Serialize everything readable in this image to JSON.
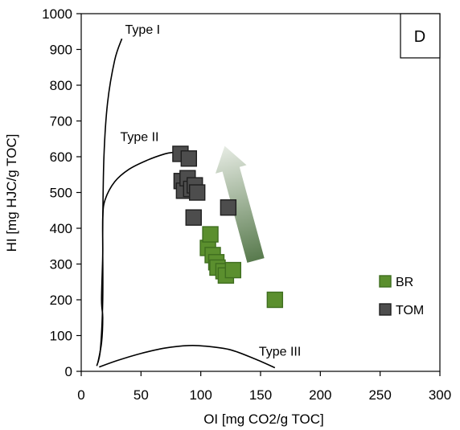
{
  "chart_data": {
    "type": "scatter",
    "title": "",
    "panel_label": "D",
    "xlabel": "OI [mg CO2/g TOC]",
    "ylabel": "HI [mg HJC/g TOC]",
    "xlim": [
      0,
      300
    ],
    "ylim": [
      0,
      1000
    ],
    "x_ticks": [
      0,
      50,
      100,
      150,
      200,
      250,
      300
    ],
    "y_ticks": [
      0,
      100,
      200,
      300,
      400,
      500,
      600,
      700,
      800,
      900,
      1000
    ],
    "grid": false,
    "legend_position": "right",
    "series": [
      {
        "name": "BR",
        "color": "#5b8f2e",
        "edge_color": "#3f6e1f",
        "marker": "square",
        "points": [
          {
            "x": 106,
            "y": 345
          },
          {
            "x": 108,
            "y": 383
          },
          {
            "x": 110,
            "y": 325
          },
          {
            "x": 113,
            "y": 305
          },
          {
            "x": 114,
            "y": 290
          },
          {
            "x": 119,
            "y": 280
          },
          {
            "x": 121,
            "y": 268
          },
          {
            "x": 127,
            "y": 283
          },
          {
            "x": 162,
            "y": 200
          }
        ]
      },
      {
        "name": "TOM",
        "color": "#4d4d4d",
        "edge_color": "#1f1f1f",
        "marker": "square",
        "points": [
          {
            "x": 83,
            "y": 608
          },
          {
            "x": 84,
            "y": 532
          },
          {
            "x": 86,
            "y": 505
          },
          {
            "x": 89,
            "y": 540
          },
          {
            "x": 90,
            "y": 595
          },
          {
            "x": 92,
            "y": 510
          },
          {
            "x": 94,
            "y": 430
          },
          {
            "x": 95,
            "y": 520
          },
          {
            "x": 97,
            "y": 500
          },
          {
            "x": 123,
            "y": 458
          }
        ]
      }
    ],
    "reference_curves": [
      {
        "label": "Type I",
        "points": [
          [
            13,
            15
          ],
          [
            16,
            60
          ],
          [
            18,
            200
          ],
          [
            18,
            400
          ],
          [
            19,
            600
          ],
          [
            22,
            750
          ],
          [
            28,
            870
          ],
          [
            34,
            930
          ]
        ]
      },
      {
        "label": "Type II",
        "points": [
          [
            14,
            25
          ],
          [
            17,
            80
          ],
          [
            18,
            150
          ],
          [
            17,
            200
          ],
          [
            18,
            330
          ],
          [
            18,
            430
          ],
          [
            20,
            480
          ],
          [
            28,
            530
          ],
          [
            40,
            565
          ],
          [
            55,
            590
          ],
          [
            70,
            608
          ],
          [
            77,
            612
          ]
        ]
      },
      {
        "label": "Type III",
        "points": [
          [
            15,
            12
          ],
          [
            30,
            30
          ],
          [
            50,
            50
          ],
          [
            70,
            65
          ],
          [
            90,
            72
          ],
          [
            105,
            70
          ],
          [
            125,
            60
          ],
          [
            145,
            35
          ],
          [
            162,
            10
          ]
        ]
      }
    ],
    "annotations": [
      {
        "type": "gradient-arrow",
        "from": [
          146,
          310
        ],
        "to": [
          120,
          630
        ],
        "color": "#5b7f52"
      }
    ]
  }
}
